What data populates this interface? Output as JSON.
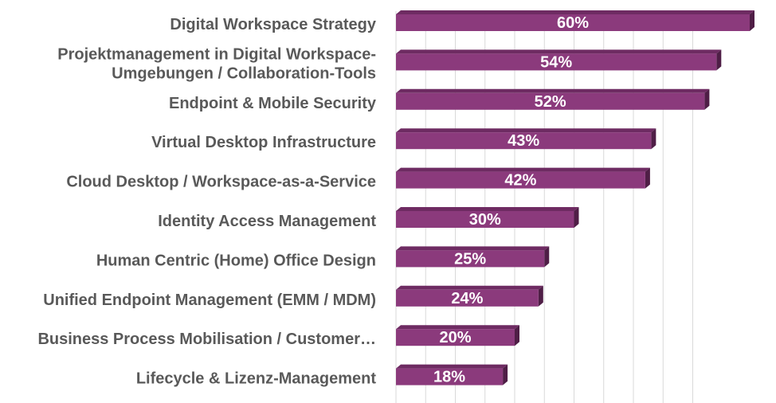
{
  "chart_data": {
    "type": "bar",
    "orientation": "horizontal",
    "title": "",
    "xlabel": "",
    "ylabel": "",
    "categories": [
      [
        "Digital Workspace Strategy"
      ],
      [
        "Projektmanagement in Digital Workspace-",
        "Umgebungen / Collaboration-Tools"
      ],
      [
        "Endpoint & Mobile Security"
      ],
      [
        "Virtual Desktop Infrastructure"
      ],
      [
        "Cloud Desktop / Workspace-as-a-Service"
      ],
      [
        "Identity Access Management"
      ],
      [
        "Human Centric (Home) Office Design"
      ],
      [
        "Unified Endpoint Management (EMM / MDM)"
      ],
      [
        "Business Process Mobilisation / Customer…"
      ],
      [
        "Lifecycle & Lizenz-Management"
      ]
    ],
    "values": [
      60,
      54,
      52,
      43,
      42,
      30,
      25,
      24,
      20,
      18
    ],
    "value_labels": [
      "60%",
      "54%",
      "52%",
      "43%",
      "42%",
      "30%",
      "25%",
      "24%",
      "20%",
      "18%"
    ],
    "xlim": [
      0,
      50
    ],
    "grid": true,
    "colors": {
      "bar_front": "#8B3A7C",
      "bar_top": "#6E2B62",
      "bar_side": "#4F1E46",
      "gridline": "#D9D9D9",
      "label": "#595959"
    }
  }
}
